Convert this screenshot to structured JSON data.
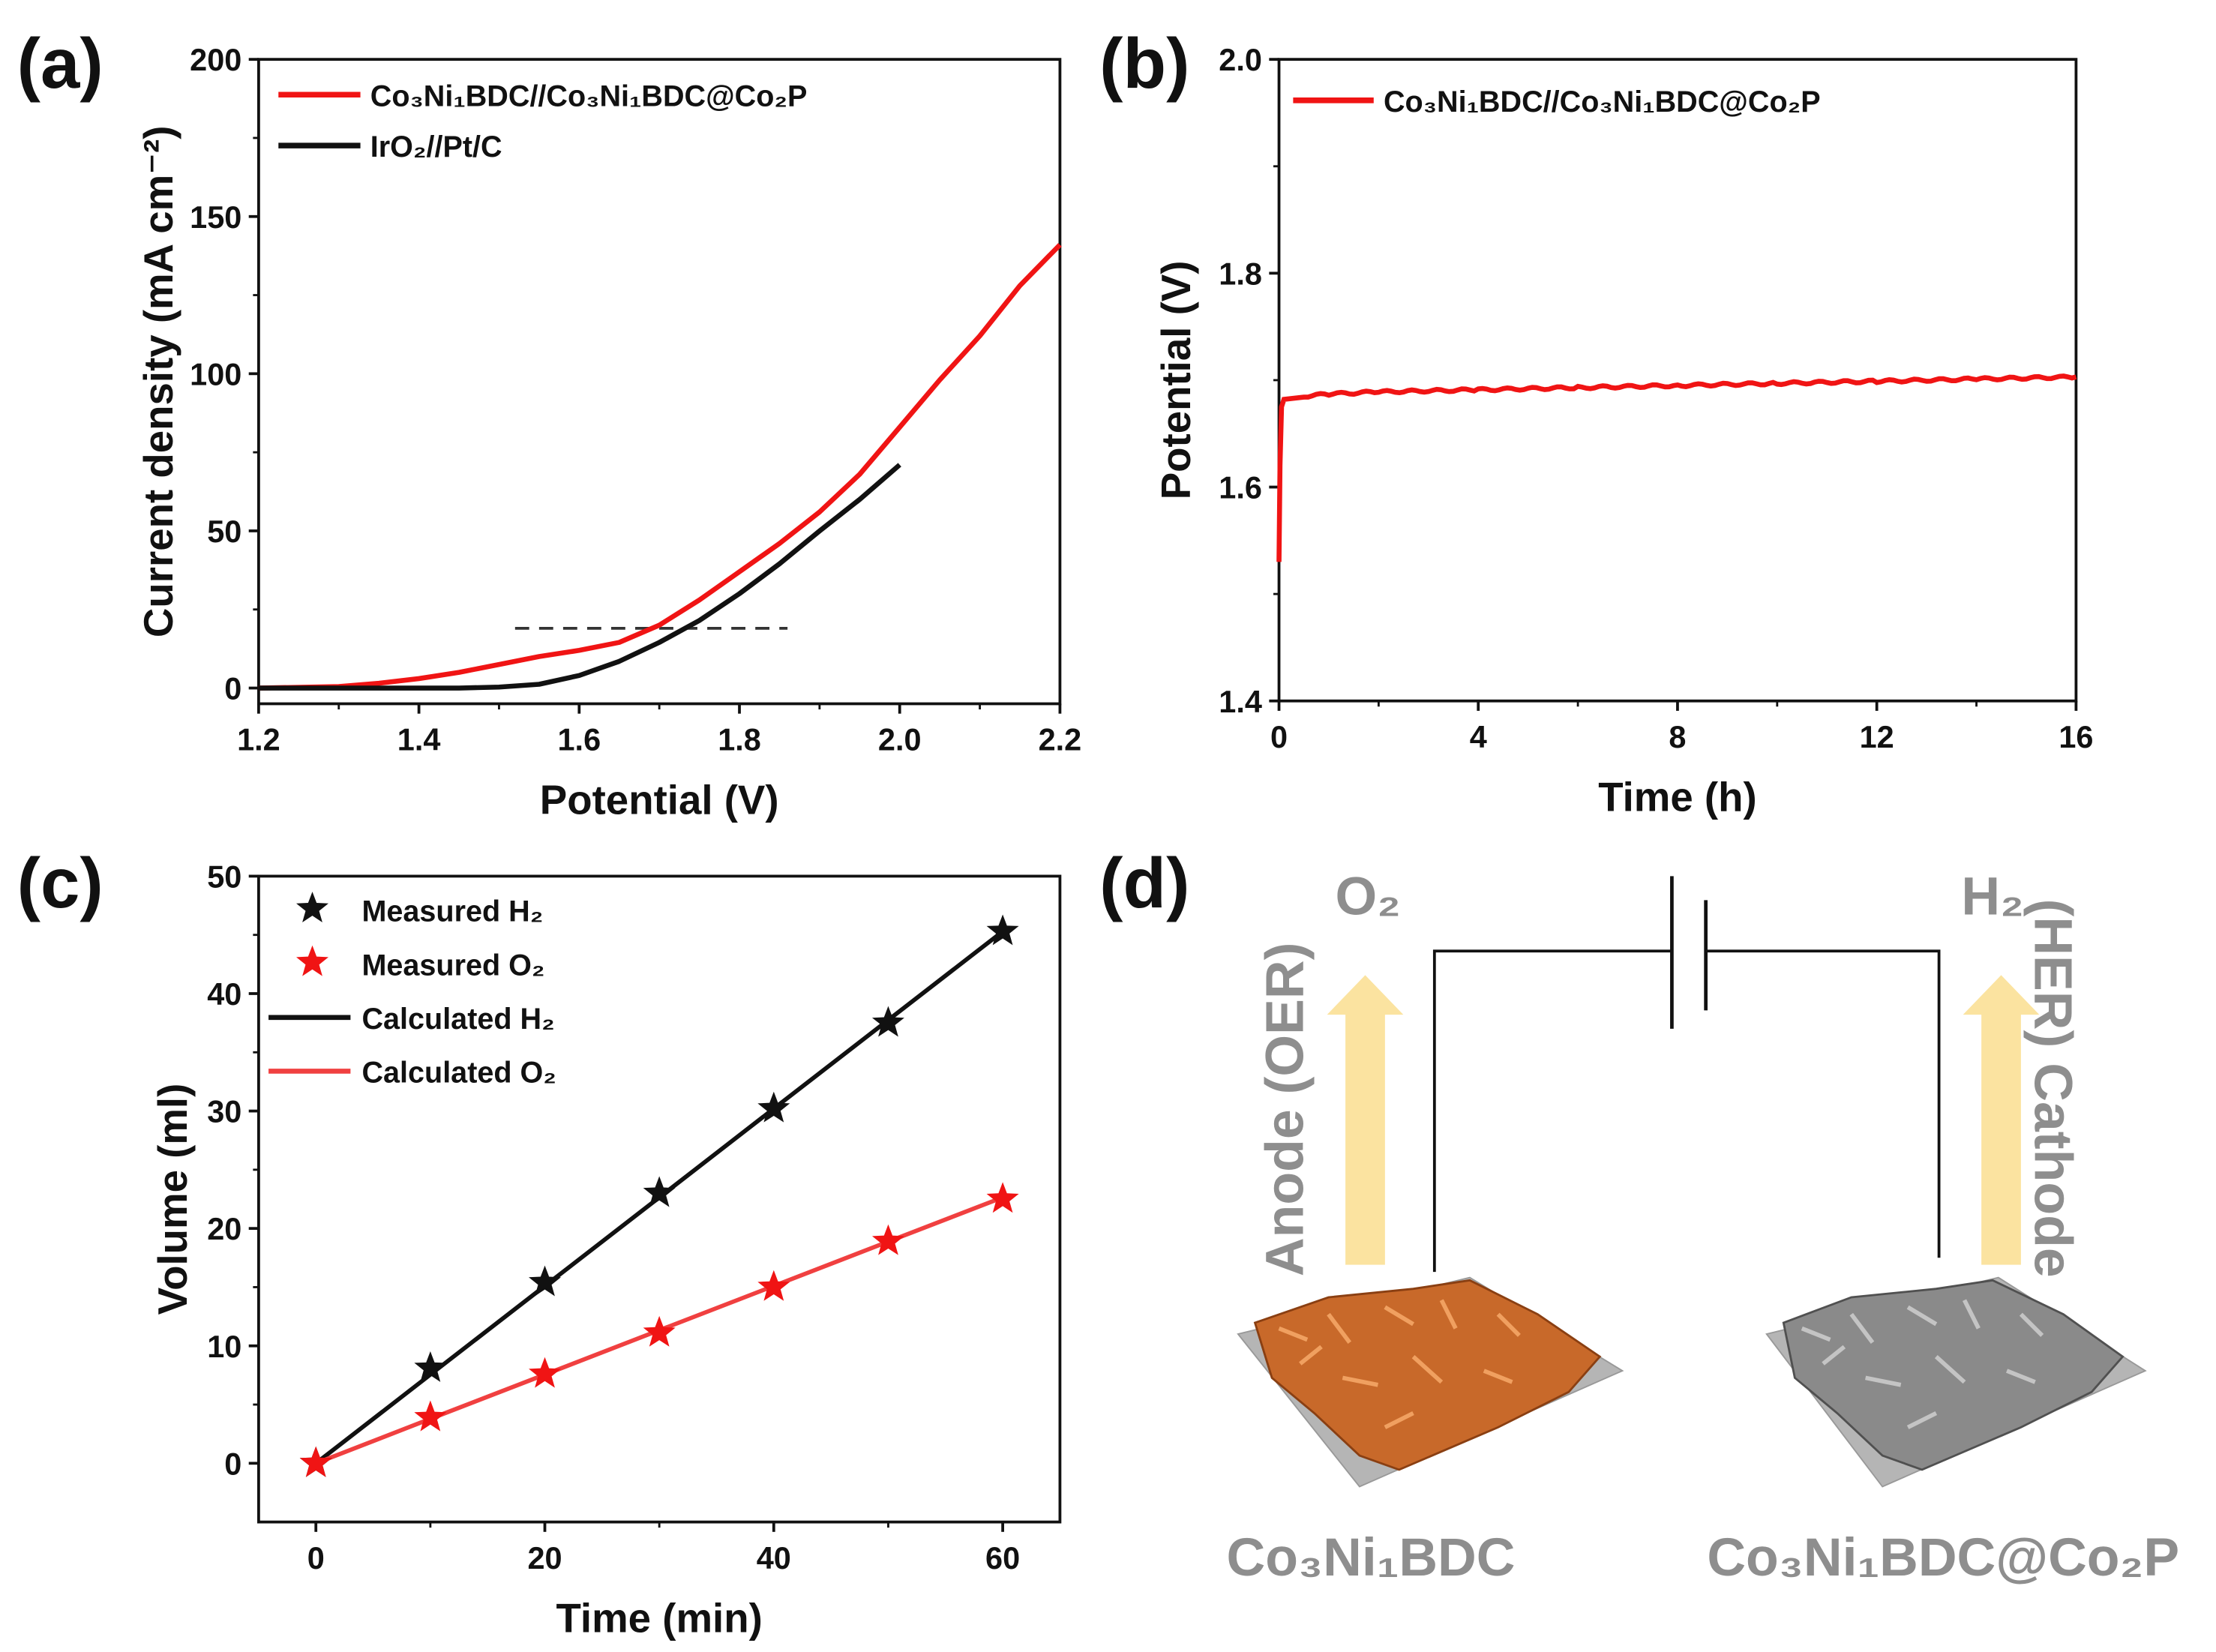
{
  "panels": {
    "a": "(a)",
    "b": "(b)",
    "c": "(c)",
    "d": "(d)"
  },
  "chart_data": [
    {
      "type": "line",
      "panel": "a",
      "xlabel": "Potential (V)",
      "ylabel": "Current density (mA cm⁻²)",
      "xlim": [
        1.2,
        2.2
      ],
      "ylim": [
        -5,
        200
      ],
      "xticks": [
        1.2,
        1.4,
        1.6,
        1.8,
        2.0,
        2.2
      ],
      "xtick_labels": [
        "1.2",
        "1.4",
        "1.6",
        "1.8",
        "2.0",
        "2.2"
      ],
      "yticks": [
        0,
        50,
        100,
        150,
        200
      ],
      "ytick_labels": [
        "0",
        "50",
        "100",
        "150",
        "200"
      ],
      "legend_position": "top-left",
      "series": [
        {
          "name": "Co₃Ni₁BDC//Co₃Ni₁BDC@Co₂P",
          "color": "#f01414",
          "x": [
            1.2,
            1.3,
            1.35,
            1.4,
            1.45,
            1.5,
            1.55,
            1.6,
            1.65,
            1.7,
            1.75,
            1.8,
            1.85,
            1.9,
            1.95,
            2.0,
            2.05,
            2.1,
            2.15,
            2.2
          ],
          "y": [
            0,
            0.5,
            1.5,
            3,
            5,
            7.5,
            10,
            12,
            14.5,
            20,
            28,
            37,
            46,
            56,
            68,
            83,
            98,
            112,
            128,
            141
          ]
        },
        {
          "name": "IrO₂//Pt/C",
          "color": "#111111",
          "x": [
            1.2,
            1.45,
            1.5,
            1.55,
            1.6,
            1.65,
            1.7,
            1.75,
            1.8,
            1.85,
            1.9,
            1.95,
            2.0
          ],
          "y": [
            0,
            0,
            0.3,
            1.2,
            4,
            8.5,
            14.5,
            21.5,
            30,
            39.5,
            50,
            60,
            71
          ]
        }
      ],
      "reference_line": {
        "y": 19,
        "x": [
          1.52,
          1.86
        ],
        "style": "dashed"
      }
    },
    {
      "type": "line",
      "panel": "b",
      "xlabel": "Time (h)",
      "ylabel": "Potential (V)",
      "xlim": [
        0,
        16
      ],
      "ylim": [
        1.4,
        2.0
      ],
      "xticks": [
        0,
        4,
        8,
        12,
        16
      ],
      "xtick_labels": [
        "0",
        "4",
        "8",
        "12",
        "16"
      ],
      "yticks": [
        1.4,
        1.6,
        1.8,
        2.0
      ],
      "ytick_labels": [
        "1.4",
        "1.6",
        "1.8",
        "2.0"
      ],
      "legend_position": "top-left",
      "series": [
        {
          "name": "Co₃Ni₁BDC//Co₃Ni₁BDC@Co₂P",
          "color": "#f01414",
          "x": [
            0,
            0.02,
            0.05,
            0.1,
            0.5,
            1,
            2,
            4,
            6,
            8,
            10,
            12,
            14,
            16
          ],
          "y": [
            1.53,
            1.62,
            1.675,
            1.682,
            1.685,
            1.687,
            1.689,
            1.691,
            1.693,
            1.695,
            1.697,
            1.699,
            1.701,
            1.703
          ]
        }
      ]
    },
    {
      "type": "scatter",
      "panel": "c",
      "xlabel": "Time (min)",
      "ylabel": "Volume (ml)",
      "xlim": [
        -5,
        65
      ],
      "ylim": [
        -5,
        50
      ],
      "xticks": [
        0,
        20,
        40,
        60
      ],
      "xtick_labels": [
        "0",
        "20",
        "40",
        "60"
      ],
      "yticks": [
        0,
        10,
        20,
        30,
        40,
        50
      ],
      "ytick_labels": [
        "0",
        "10",
        "20",
        "30",
        "40",
        "50"
      ],
      "legend_position": "top-left",
      "x": [
        0,
        10,
        20,
        30,
        40,
        50,
        60
      ],
      "series": [
        {
          "name": "Measured H₂",
          "kind": "marker-star",
          "color": "#111111",
          "values": [
            0,
            8.1,
            15.4,
            23.0,
            30.2,
            37.5,
            45.3
          ]
        },
        {
          "name": "Measured O₂",
          "kind": "marker-star",
          "color": "#f01414",
          "values": [
            0,
            3.9,
            7.6,
            11.1,
            15.0,
            18.9,
            22.5
          ]
        },
        {
          "name": "Calculated H₂",
          "kind": "line",
          "color": "#111111",
          "values": [
            0,
            7.55,
            15.1,
            22.65,
            30.2,
            37.75,
            45.3
          ]
        },
        {
          "name": "Calculated O₂",
          "kind": "line",
          "color": "#f04040",
          "values": [
            0,
            3.78,
            7.55,
            11.33,
            15.1,
            18.88,
            22.65
          ]
        }
      ]
    }
  ],
  "diagram": {
    "anode_gas": "O₂",
    "cathode_gas": "H₂",
    "anode_label": "Anode (OER)",
    "cathode_label": "(HER) Cathode",
    "anode_material": "Co₃Ni₁BDC",
    "cathode_material": "Co₃Ni₁BDC@Co₂P",
    "colors": {
      "arrow": "#fbe3a0",
      "anode": "#c8692a",
      "cathode": "#8a8a8a",
      "text": "#8e8e8e"
    }
  }
}
